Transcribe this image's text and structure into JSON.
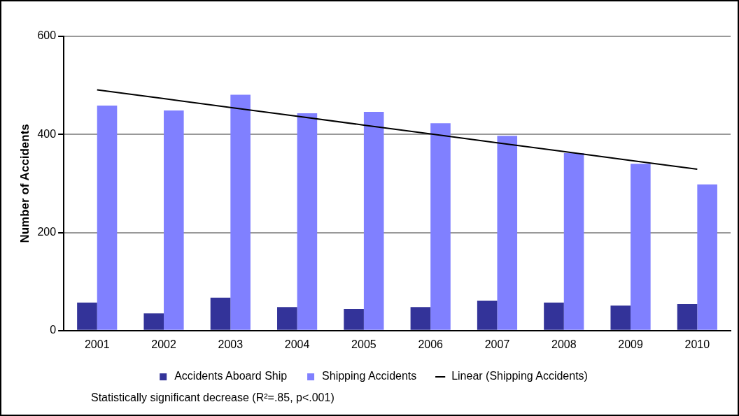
{
  "chart_data": {
    "type": "bar",
    "ylabel": "Number of Accidents",
    "categories": [
      "2001",
      "2002",
      "2003",
      "2004",
      "2005",
      "2006",
      "2007",
      "2008",
      "2009",
      "2010"
    ],
    "series": [
      {
        "name": "Accidents Aboard Ship",
        "color": "#333399",
        "values": [
          57,
          35,
          67,
          48,
          44,
          48,
          61,
          57,
          51,
          54
        ]
      },
      {
        "name": "Shipping Accidents",
        "color": "#8080ff",
        "values": [
          459,
          449,
          481,
          443,
          446,
          423,
          397,
          362,
          340,
          298
        ]
      },
      {
        "name": "Linear (Shipping Accidents)",
        "type": "line",
        "color": "#000000",
        "marker": "none",
        "values": [
          491,
          473,
          455,
          437,
          419,
          401,
          383,
          365,
          347,
          329
        ]
      }
    ],
    "ylim": [
      0,
      600
    ],
    "yticks": [
      0,
      200,
      400,
      600
    ],
    "grid": "y",
    "legend": "bottom",
    "annotations": [
      "Statistically significant decrease (R²=.85, p<.001)"
    ]
  }
}
